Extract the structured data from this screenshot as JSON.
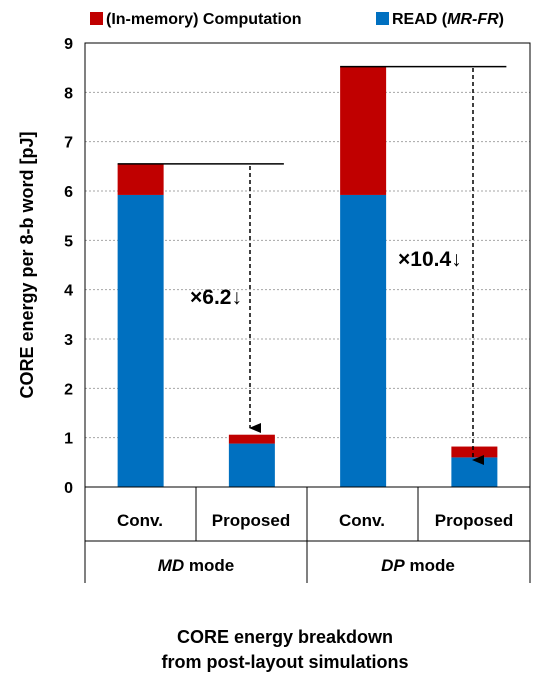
{
  "chart_data": {
    "type": "bar",
    "stacked": true,
    "ylabel": "CORE energy per 8-b word [pJ]",
    "ylim": [
      0,
      9
    ],
    "yticks": [
      "0",
      "1",
      "2",
      "3",
      "4",
      "5",
      "6",
      "7",
      "8",
      "9"
    ],
    "grid": true,
    "legend_position": "top",
    "categories": [
      "Conv.",
      "Proposed",
      "Conv.",
      "Proposed"
    ],
    "groups": [
      {
        "italic": "MD",
        "rest": " mode"
      },
      {
        "italic": "DP",
        "rest": " mode"
      }
    ],
    "series": [
      {
        "name": "READ",
        "name_suffix": "MR-FR",
        "color": "#0070C0",
        "values": [
          5.92,
          0.88,
          5.92,
          0.6
        ]
      },
      {
        "name": "(In-memory) Computation",
        "color": "#C00000",
        "values": [
          0.63,
          0.18,
          2.6,
          0.22
        ]
      }
    ],
    "annotations": [
      "×6.2",
      "×10.4"
    ],
    "annotation_color": "#C00000",
    "caption": [
      "CORE energy breakdown",
      "from post-layout simulations"
    ]
  }
}
